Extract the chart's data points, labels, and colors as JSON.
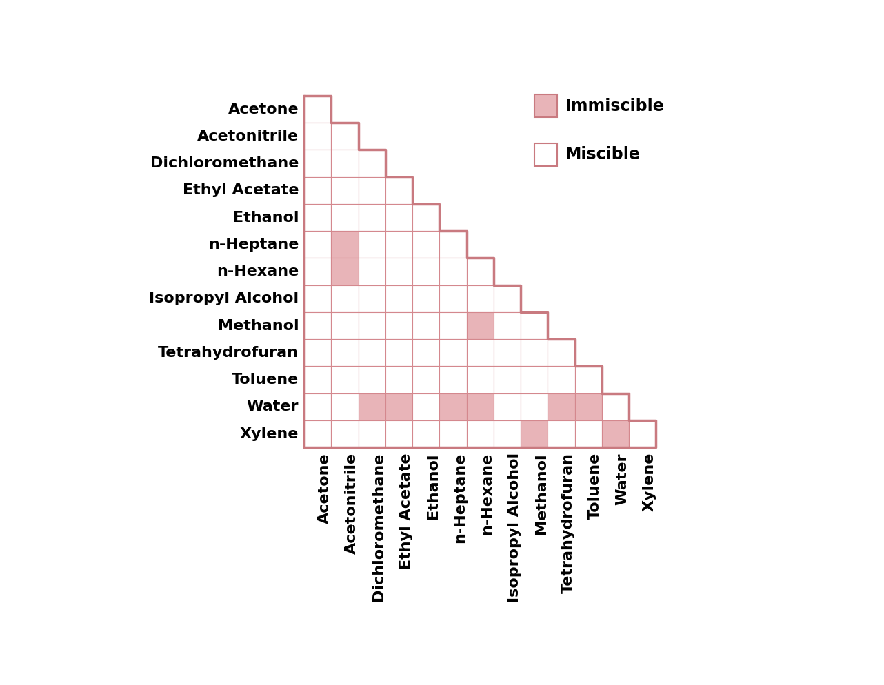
{
  "solvents": [
    "Acetone",
    "Acetonitrile",
    "Dichloromethane",
    "Ethyl Acetate",
    "Ethanol",
    "n-Heptane",
    "n-Hexane",
    "Isopropyl Alcohol",
    "Methanol",
    "Tetrahydrofuran",
    "Toluene",
    "Water",
    "Xylene"
  ],
  "immiscible_pairs": [
    [
      5,
      1
    ],
    [
      6,
      1
    ],
    [
      8,
      6
    ],
    [
      11,
      2
    ],
    [
      11,
      3
    ],
    [
      11,
      5
    ],
    [
      11,
      6
    ],
    [
      11,
      9
    ],
    [
      11,
      10
    ],
    [
      12,
      8
    ],
    [
      12,
      11
    ]
  ],
  "immiscible_color": "#e8b4b8",
  "miscible_color": "#ffffff",
  "grid_color": "#d4888e",
  "border_color": "#c97a80",
  "background_color": "#ffffff",
  "legend_immiscible_label": "Immiscible",
  "legend_miscible_label": "Miscible",
  "row_label_fontsize": 16,
  "col_label_fontsize": 16,
  "legend_fontsize": 17
}
